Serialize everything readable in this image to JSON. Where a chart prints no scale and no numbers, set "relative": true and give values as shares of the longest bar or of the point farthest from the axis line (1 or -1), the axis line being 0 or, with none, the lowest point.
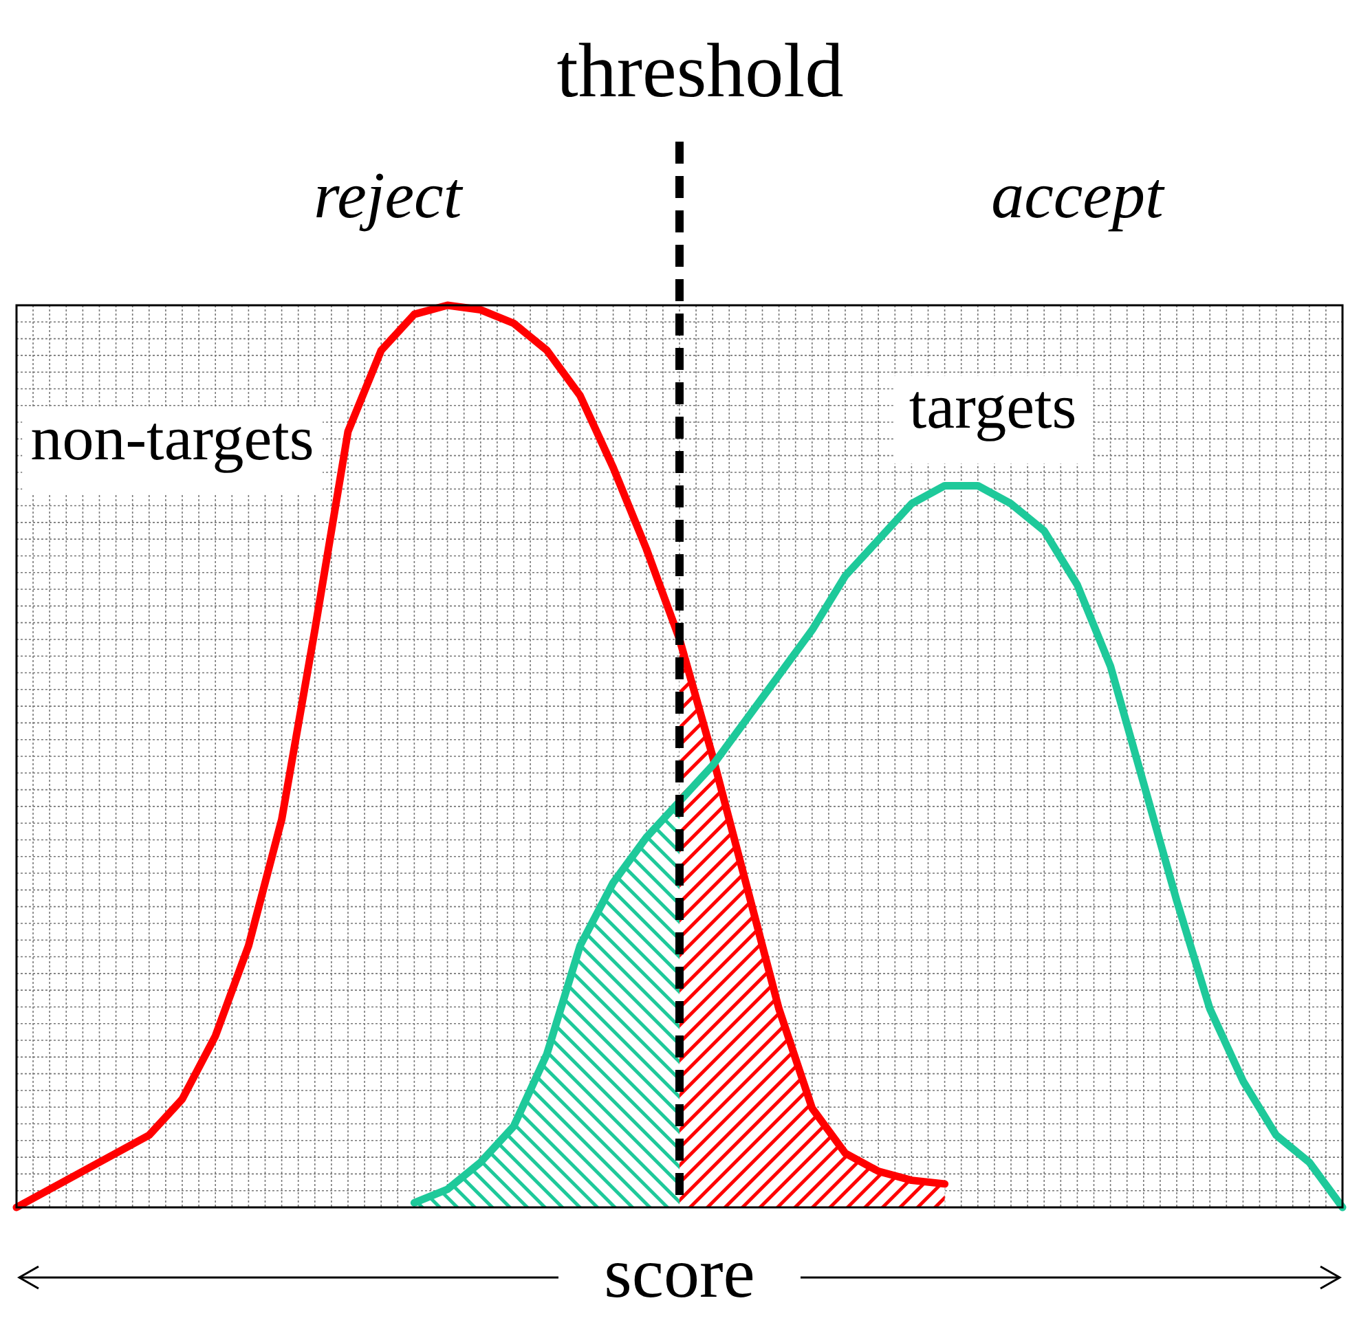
{
  "chart_data": {
    "type": "line",
    "relative": true,
    "xlabel": "score",
    "categories": [
      null,
      null,
      null,
      null,
      null,
      null,
      null,
      null,
      null,
      null,
      null,
      null,
      null,
      null,
      null,
      null,
      null,
      null,
      null,
      null,
      null,
      null,
      null,
      null,
      null,
      null,
      null,
      null,
      null,
      null,
      null,
      null,
      null,
      null,
      null,
      null,
      null,
      null,
      null,
      null,
      null
    ],
    "grid": true,
    "legend": false,
    "series": [
      {
        "name": "non-targets",
        "color": "#ff0000",
        "values": [
          0,
          0.02,
          0.04,
          0.06,
          0.08,
          0.12,
          0.19,
          0.29,
          0.43,
          0.64,
          0.86,
          0.95,
          0.99,
          1,
          0.995,
          0.98,
          0.95,
          0.9,
          0.82,
          0.73,
          0.63,
          0.5,
          0.36,
          0.22,
          0.11,
          0.06,
          0.04,
          0.03,
          0.026,
          null,
          null,
          null,
          null,
          null,
          null,
          null,
          null,
          null,
          null,
          null,
          null
        ]
      },
      {
        "name": "targets",
        "color": "#1ec99a",
        "values": [
          null,
          null,
          null,
          null,
          null,
          null,
          null,
          null,
          null,
          null,
          null,
          null,
          0.005,
          0.02,
          0.05,
          0.09,
          0.17,
          0.29,
          0.36,
          0.41,
          0.45,
          0.49,
          0.54,
          0.59,
          0.64,
          0.7,
          0.74,
          0.78,
          0.8,
          0.8,
          0.78,
          0.75,
          0.69,
          0.6,
          0.47,
          0.34,
          0.22,
          0.14,
          0.08,
          0.05,
          0
        ]
      },
      {
        "type": "area",
        "color": "#1ec99a",
        "values": [
          null,
          null,
          null,
          null,
          null,
          null,
          null,
          null,
          null,
          null,
          null,
          null,
          0.005,
          0.02,
          0.05,
          0.09,
          0.17,
          0.29,
          0.36,
          0.41,
          0.45,
          null,
          null,
          null,
          null,
          null,
          null,
          null,
          null,
          null,
          null,
          null,
          null,
          null,
          null,
          null,
          null,
          null,
          null,
          null,
          null
        ]
      },
      {
        "type": "area",
        "color": "#ff0000",
        "values": [
          null,
          null,
          null,
          null,
          null,
          null,
          null,
          null,
          null,
          null,
          null,
          null,
          null,
          null,
          null,
          null,
          null,
          null,
          null,
          null,
          0.63,
          0.5,
          0.36,
          0.22,
          0.11,
          0.06,
          0.04,
          0.03,
          0.026,
          null,
          null,
          null,
          null,
          null,
          null,
          null,
          null,
          null,
          null,
          null,
          null
        ]
      }
    ],
    "annotations": [
      "threshold",
      "reject",
      "accept"
    ]
  }
}
